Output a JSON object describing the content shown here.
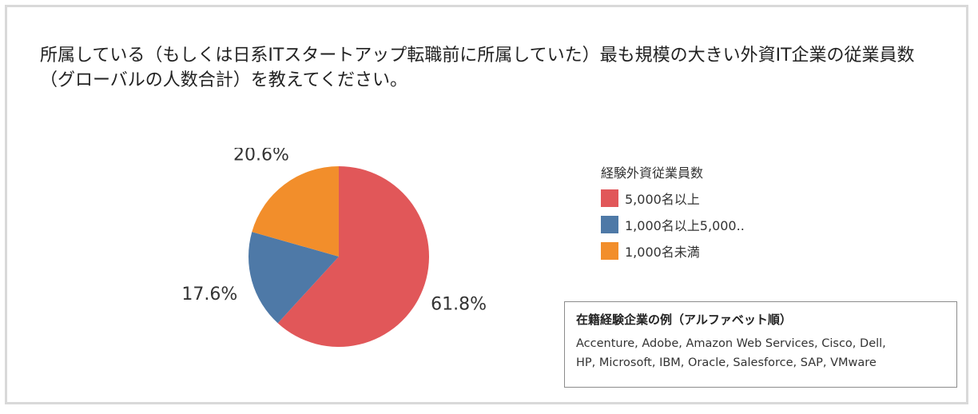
{
  "title": "所属している（もしくは日系ITスタートアップ転職前に所属していた）最も規模の大きい外資IT企業の従業員数（グローバルの人数合計）を教えてください。",
  "chart_data": {
    "type": "pie",
    "legend_title": "経験外資従業員数",
    "legend_position": "right",
    "slices": [
      {
        "name": "5,000名以上",
        "value": 61.8,
        "label": "61.8%",
        "color": "#e15759"
      },
      {
        "name": "1,000名以上5,000..",
        "value": 17.6,
        "label": "17.6%",
        "color": "#4e79a7"
      },
      {
        "name": "1,000名未満",
        "value": 20.6,
        "label": "20.6%",
        "color": "#f28e2b"
      }
    ]
  },
  "examples_box": {
    "title": "在籍経験企業の例（アルファベット順）",
    "line1": "Accenture, Adobe, Amazon Web Services, Cisco, Dell,",
    "line2": "HP, Microsoft, IBM, Oracle, Salesforce, SAP, VMware"
  }
}
